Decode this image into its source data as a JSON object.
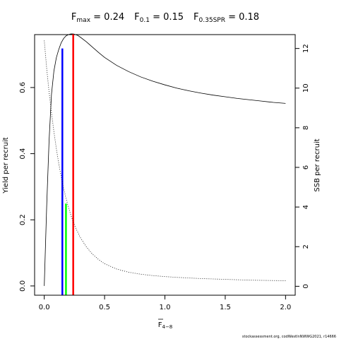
{
  "title": {
    "parts": [
      {
        "base": "F",
        "sub": "max",
        "value": " = 0.24"
      },
      {
        "base": "F",
        "sub": "0.1",
        "value": " = 0.15"
      },
      {
        "base": "F",
        "sub": "0.35SPR",
        "value": " = 0.18"
      }
    ]
  },
  "credit": "stockassessment.org, codWestInNWWG2021, r14666",
  "chart_data": {
    "type": "line",
    "xlabel": {
      "base": "F",
      "sub": "4−8"
    },
    "ylabel_left": "Yield per recruit",
    "ylabel_right": "SSB per recruit",
    "xlim": [
      -0.08,
      2.08
    ],
    "ylim_left": [
      -0.028,
      0.76
    ],
    "ylim_right": [
      -0.45,
      12.7
    ],
    "x_ticks": [
      0,
      0.5,
      1.0,
      1.5,
      2.0
    ],
    "x_tick_labels": [
      "0.0",
      "0.5",
      "1.0",
      "1.5",
      "2.0"
    ],
    "y_left_ticks": [
      0,
      0.2,
      0.4,
      0.6
    ],
    "y_left_tick_labels": [
      "0.0",
      "0.2",
      "0.4",
      "0.6"
    ],
    "y_right_ticks": [
      0,
      2,
      4,
      6,
      8,
      10,
      12
    ],
    "y_right_tick_labels": [
      "0",
      "2",
      "4",
      "6",
      "8",
      "10",
      "12"
    ],
    "grid": false,
    "series": [
      {
        "axis": "left",
        "style": "solid",
        "x": [
          0,
          0.02,
          0.04,
          0.06,
          0.08,
          0.1,
          0.12,
          0.14,
          0.16,
          0.18,
          0.2,
          0.22,
          0.24,
          0.26,
          0.28,
          0.3,
          0.35,
          0.4,
          0.45,
          0.5,
          0.6,
          0.7,
          0.8,
          0.9,
          1.0,
          1.1,
          1.2,
          1.3,
          1.4,
          1.5,
          1.6,
          1.7,
          1.8,
          1.9,
          2.0
        ],
        "y": [
          0.0,
          0.24,
          0.44,
          0.58,
          0.65,
          0.69,
          0.715,
          0.735,
          0.748,
          0.756,
          0.76,
          0.762,
          0.762,
          0.76,
          0.757,
          0.752,
          0.738,
          0.722,
          0.706,
          0.691,
          0.667,
          0.648,
          0.632,
          0.619,
          0.608,
          0.598,
          0.59,
          0.583,
          0.577,
          0.572,
          0.567,
          0.563,
          0.559,
          0.555,
          0.552
        ]
      },
      {
        "axis": "right",
        "style": "dotted",
        "x": [
          0,
          0.02,
          0.04,
          0.06,
          0.08,
          0.1,
          0.12,
          0.14,
          0.16,
          0.18,
          0.2,
          0.22,
          0.24,
          0.26,
          0.28,
          0.3,
          0.35,
          0.4,
          0.45,
          0.5,
          0.6,
          0.7,
          0.8,
          0.9,
          1.0,
          1.1,
          1.2,
          1.3,
          1.4,
          1.5,
          1.6,
          1.7,
          1.8,
          1.9,
          2.0
        ],
        "y": [
          12.4,
          11.0,
          9.8,
          8.75,
          7.8,
          6.95,
          6.2,
          5.55,
          4.95,
          4.45,
          4.0,
          3.6,
          3.25,
          2.95,
          2.7,
          2.45,
          1.98,
          1.62,
          1.35,
          1.14,
          0.87,
          0.71,
          0.61,
          0.54,
          0.49,
          0.45,
          0.42,
          0.39,
          0.37,
          0.35,
          0.33,
          0.31,
          0.3,
          0.29,
          0.28
        ]
      }
    ],
    "reference_lines": [
      {
        "name": "F0.1",
        "x": 0.15,
        "y_left": 0.718,
        "color": "#0000ff"
      },
      {
        "name": "F0.35SPR",
        "x": 0.18,
        "y_left": 0.249,
        "color": "#00ff00"
      },
      {
        "name": "Fmax",
        "x": 0.24,
        "y_left": 0.762,
        "color": "#ff0000"
      }
    ]
  }
}
